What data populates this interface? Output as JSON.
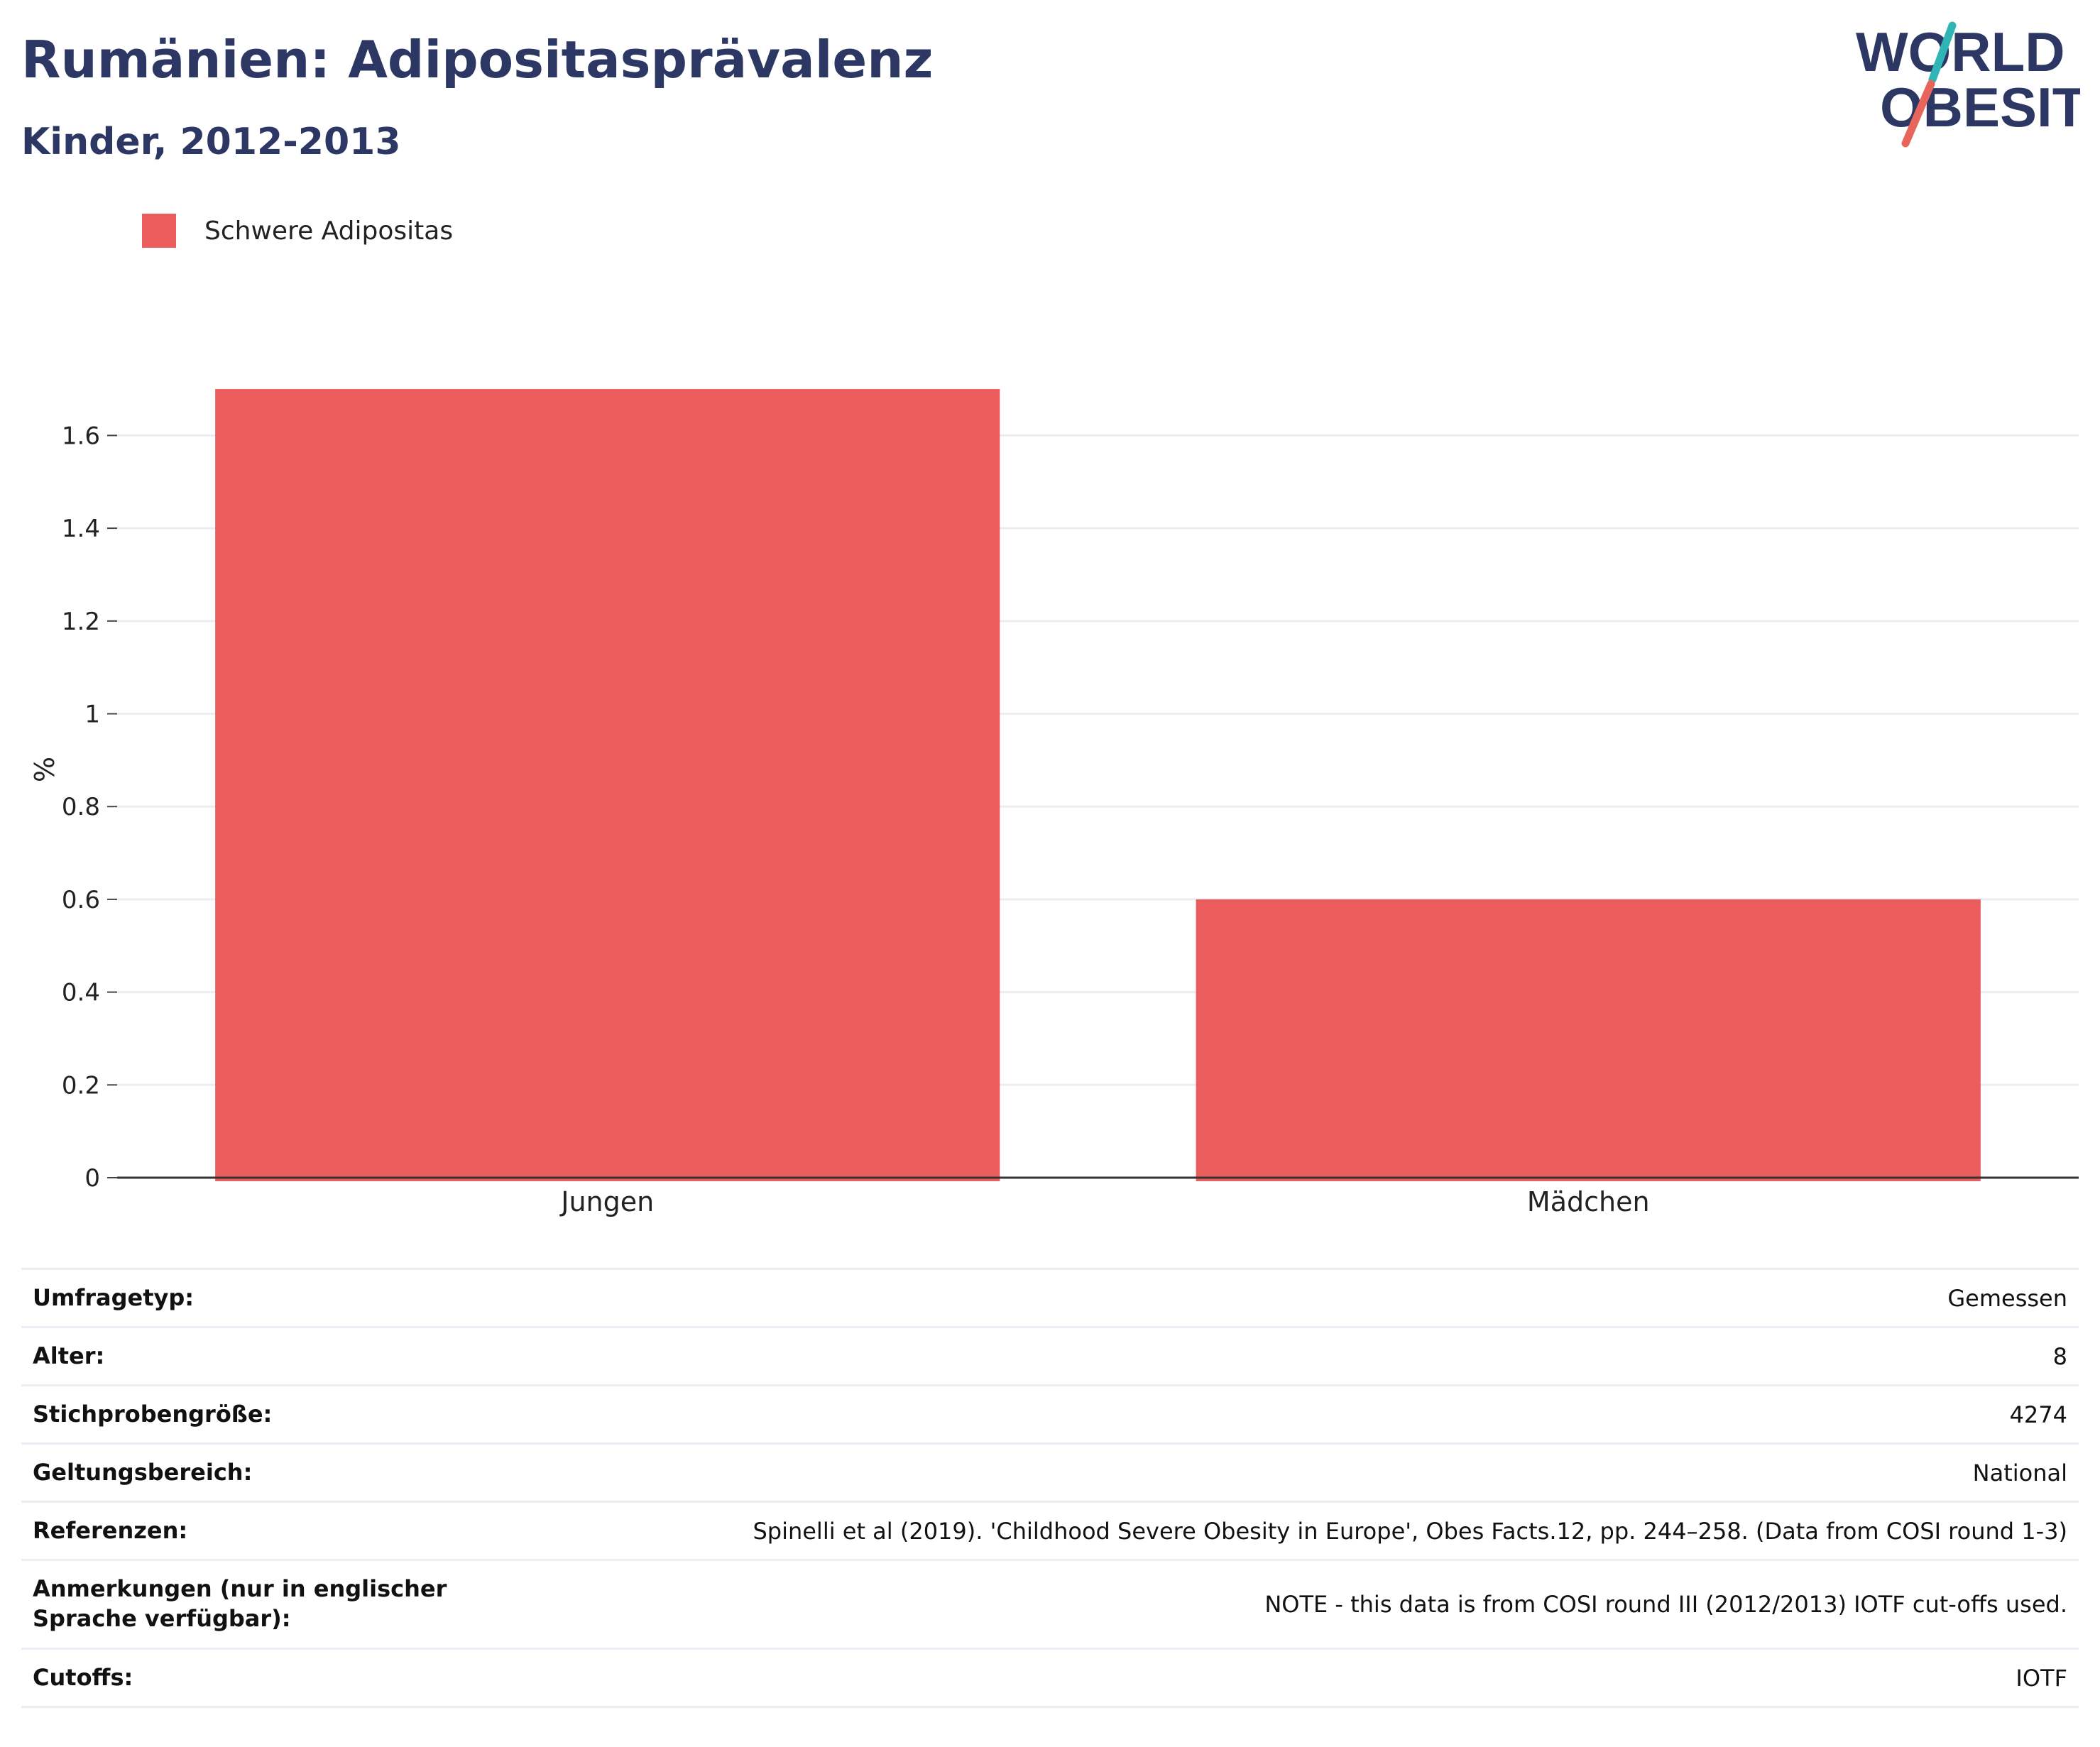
{
  "header": {
    "title": "Rumänien: Adipositasprävalenz",
    "subtitle": "Kinder, 2012-2013"
  },
  "logo": {
    "line1": "WORLD",
    "line2": "OBESITY",
    "colors": {
      "text": "#2c3764",
      "slash_top": "#2fb5b5",
      "slash_bottom": "#e8655c"
    }
  },
  "chart_data": {
    "type": "bar",
    "categories": [
      "Jungen",
      "Mädchen"
    ],
    "series": [
      {
        "name": "Schwere Adipositas",
        "values": [
          1.7,
          0.6
        ],
        "color": "#eb5c5c"
      }
    ],
    "title": "",
    "xlabel": "",
    "ylabel": "%",
    "ylim": [
      0,
      1.72
    ],
    "yticks": [
      0,
      0.2,
      0.4,
      0.6,
      0.8,
      1,
      1.2,
      1.4,
      1.6
    ],
    "ytick_labels": [
      "0",
      "0.2",
      "0.4",
      "0.6",
      "0.8",
      "1",
      "1.2",
      "1.4",
      "1.6"
    ],
    "grid": true,
    "legend_position": "top-left"
  },
  "info": [
    {
      "label": "Umfragetyp:",
      "value": "Gemessen"
    },
    {
      "label": "Alter:",
      "value": "8"
    },
    {
      "label": "Stichprobengröße:",
      "value": "4274"
    },
    {
      "label": "Geltungsbereich:",
      "value": "National"
    },
    {
      "label": "Referenzen:",
      "value": "Spinelli et al (2019). 'Childhood Severe Obesity in Europe', Obes Facts.12, pp. 244–258. (Data from COSI round 1-3)"
    },
    {
      "label": "Anmerkungen (nur in englischer Sprache verfügbar):",
      "value": "NOTE - this data is from COSI round III (2012/2013) IOTF cut-offs used."
    },
    {
      "label": "Cutoffs:",
      "value": "IOTF"
    }
  ]
}
